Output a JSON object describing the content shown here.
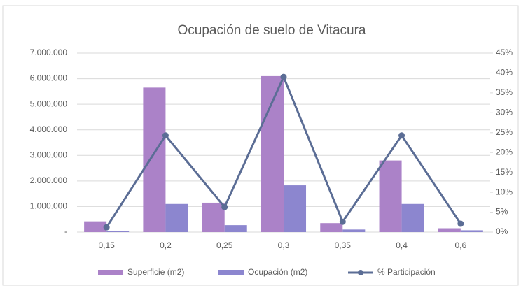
{
  "chart_data": {
    "type": "bar-line",
    "title": "Ocupación de suelo de Vitacura",
    "categories": [
      "0,15",
      "0,2",
      "0,25",
      "0,3",
      "0,35",
      "0,4",
      "0,6"
    ],
    "series": [
      {
        "name": "Superficie (m2)",
        "type": "bar",
        "color": "#ab82c8",
        "values": [
          420000,
          5650000,
          1150000,
          6100000,
          350000,
          2800000,
          150000
        ]
      },
      {
        "name": "Ocupación (m2)",
        "type": "bar",
        "color": "#8c86cf",
        "values": [
          30000,
          1100000,
          270000,
          1830000,
          100000,
          1100000,
          70000
        ]
      },
      {
        "name": "% Participación",
        "type": "line",
        "axis": "y2",
        "color": "#5b6d95",
        "values": [
          1.2,
          24.3,
          6.3,
          39,
          2.6,
          24.3,
          2.1
        ]
      }
    ],
    "ylim": [
      0,
      7000000
    ],
    "yticks": [
      {
        "value": 0,
        "label": "-"
      },
      {
        "value": 1000000,
        "label": "1.000.000"
      },
      {
        "value": 2000000,
        "label": "2.000.000"
      },
      {
        "value": 3000000,
        "label": "3.000.000"
      },
      {
        "value": 4000000,
        "label": "4.000.000"
      },
      {
        "value": 5000000,
        "label": "5.000.000"
      },
      {
        "value": 6000000,
        "label": "6.000.000"
      },
      {
        "value": 7000000,
        "label": "7.000.000"
      }
    ],
    "y2lim": [
      0,
      45
    ],
    "y2ticks": [
      {
        "value": 0,
        "label": "0%"
      },
      {
        "value": 5,
        "label": "5%"
      },
      {
        "value": 10,
        "label": "10%"
      },
      {
        "value": 15,
        "label": "15%"
      },
      {
        "value": 20,
        "label": "20%"
      },
      {
        "value": 25,
        "label": "25%"
      },
      {
        "value": 30,
        "label": "30%"
      },
      {
        "value": 35,
        "label": "35%"
      },
      {
        "value": 40,
        "label": "40%"
      },
      {
        "value": 45,
        "label": "45%"
      }
    ],
    "grid": true,
    "legend": "bottom"
  }
}
